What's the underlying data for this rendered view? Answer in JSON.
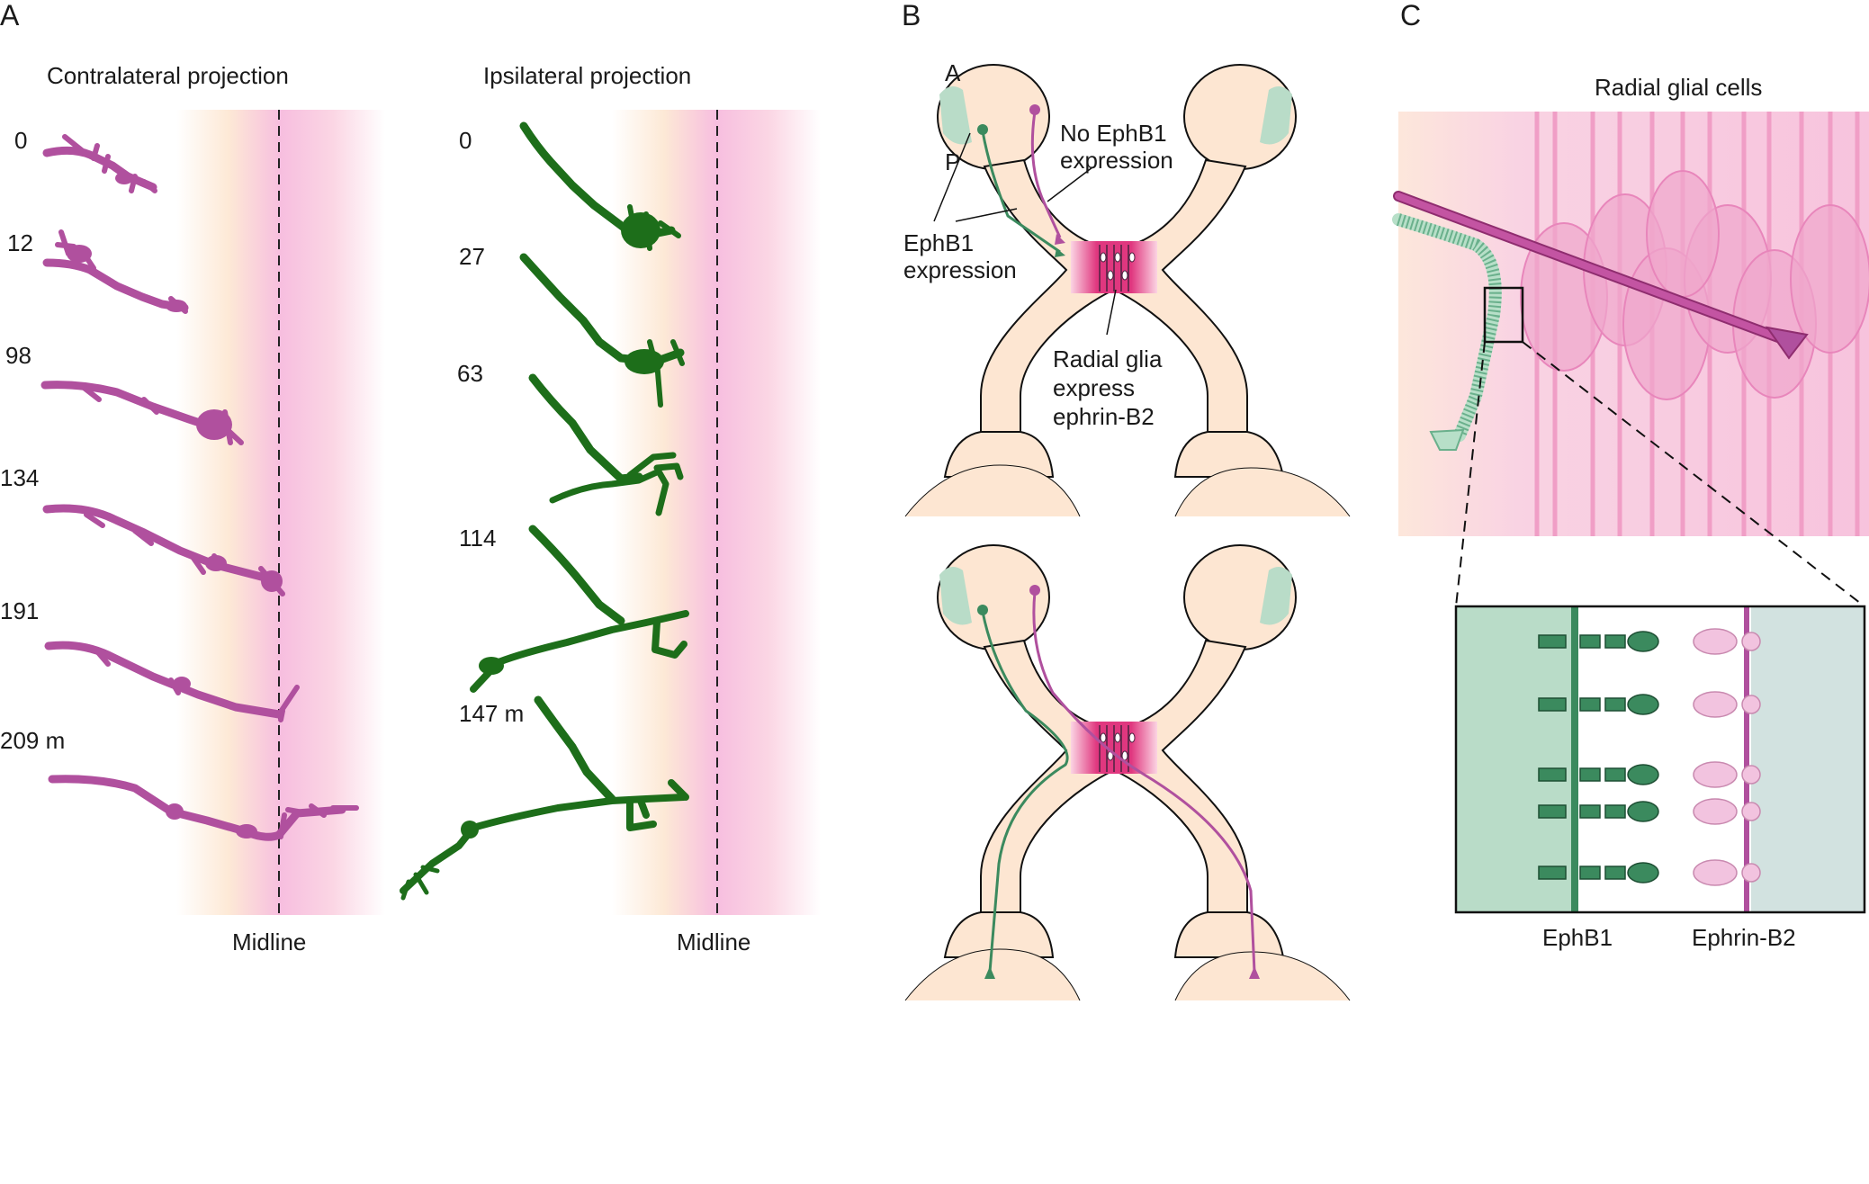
{
  "panels": {
    "a": {
      "letter": "A",
      "contra_title": "Contralateral projection",
      "ipsi_title": "Ipsilateral projection",
      "contra_times": [
        "0",
        "12",
        "98",
        "134",
        "191",
        "209 m"
      ],
      "ipsi_times": [
        "0",
        "27",
        "63",
        "114",
        "147 m"
      ],
      "midline_label": "Midline"
    },
    "b": {
      "letter": "B",
      "a_label": "A",
      "p_label": "P",
      "no_ephb1_line1": "No  EphB1",
      "no_ephb1_line2": "expression",
      "ephb1_line1": "EphB1",
      "ephb1_line2": "expression",
      "glia_line1": "Radial glia",
      "glia_line2": "express",
      "glia_line3": "ephrin-B2"
    },
    "c": {
      "letter": "C",
      "title": "Radial glial cells",
      "ephb1_label": "EphB1",
      "ephrinb2_label": "Ephrin-B2"
    }
  },
  "colors": {
    "contralateral_axon": "#b0509e",
    "ipsilateral_axon": "#1d6e1a",
    "retina_green": "#b9dcc8",
    "chiasm_pink": "#e0377f",
    "tissue_peach": "#fde6d2",
    "receptor_green": "#3b8a5e",
    "ligand_pink": "#f2c3df"
  }
}
